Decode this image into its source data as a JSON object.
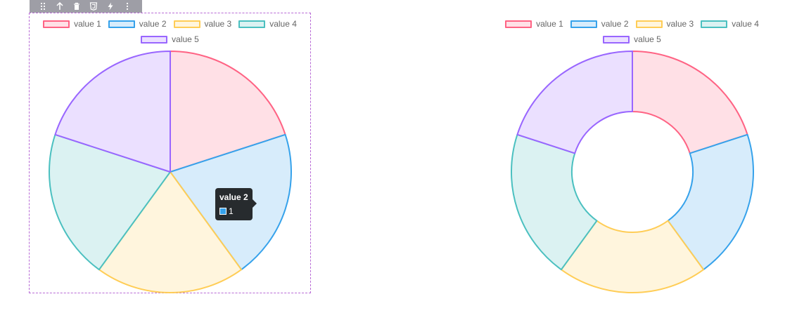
{
  "toolbar": {
    "icons": [
      "drag-handle-icon",
      "arrow-up-icon",
      "trash-icon",
      "css-icon",
      "lightning-icon",
      "more-vertical-icon"
    ]
  },
  "chart_data": [
    {
      "type": "pie",
      "categories": [
        "value 1",
        "value 2",
        "value 3",
        "value 4",
        "value 5"
      ],
      "values": [
        1,
        1,
        1,
        1,
        1
      ],
      "legend": "top",
      "colors": {
        "border": [
          "#ff6384",
          "#36a2eb",
          "#ffcd56",
          "#4bc0c0",
          "#9966ff"
        ],
        "fill": [
          "#ffe0e6",
          "#d7ecfb",
          "#fff5dd",
          "#dbf2f2",
          "#ebe0ff"
        ]
      },
      "tooltip": {
        "title": "value 2",
        "value": "1"
      }
    },
    {
      "type": "doughnut",
      "categories": [
        "value 1",
        "value 2",
        "value 3",
        "value 4",
        "value 5"
      ],
      "values": [
        1,
        1,
        1,
        1,
        1
      ],
      "legend": "top",
      "colors": {
        "border": [
          "#ff6384",
          "#36a2eb",
          "#ffcd56",
          "#4bc0c0",
          "#9966ff"
        ],
        "fill": [
          "#ffe0e6",
          "#d7ecfb",
          "#fff5dd",
          "#dbf2f2",
          "#ebe0ff"
        ]
      }
    }
  ]
}
